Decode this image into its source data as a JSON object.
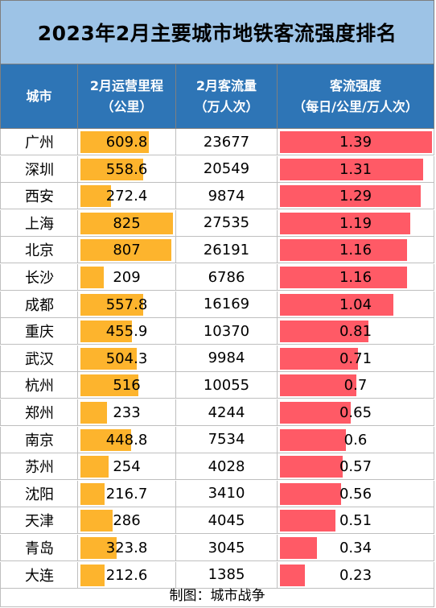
{
  "title": "2023年2月主要城市地铁客流强度排名",
  "headers": {
    "city": "城市",
    "mileage_line1": "2月运营里程",
    "mileage_line2": "（公里）",
    "flow_line1": "2月客流量",
    "flow_line2": "（万人次）",
    "intensity_line1": "客流强度",
    "intensity_line2": "（每日/公里/万人次）"
  },
  "colors": {
    "header_bg": "#2e75b6",
    "title_bg": "#9dc3e6",
    "mileage_bar": "#fdb42d",
    "intensity_bar": "#ff5a66"
  },
  "chart_data": {
    "type": "table",
    "columns": [
      "城市",
      "2月运营里程（公里）",
      "2月客流量（万人次）",
      "客流强度（每日/公里/万人次）"
    ],
    "rows": [
      {
        "city": "广州",
        "mileage": 609.8,
        "flow": 23677,
        "intensity": 1.39
      },
      {
        "city": "深圳",
        "mileage": 558.6,
        "flow": 20549,
        "intensity": 1.31
      },
      {
        "city": "西安",
        "mileage": 272.4,
        "flow": 9874,
        "intensity": 1.29
      },
      {
        "city": "上海",
        "mileage": 825,
        "flow": 27535,
        "intensity": 1.19
      },
      {
        "city": "北京",
        "mileage": 807,
        "flow": 26191,
        "intensity": 1.16
      },
      {
        "city": "长沙",
        "mileage": 209,
        "flow": 6786,
        "intensity": 1.16
      },
      {
        "city": "成都",
        "mileage": 557.8,
        "flow": 16169,
        "intensity": 1.04
      },
      {
        "city": "重庆",
        "mileage": 455.9,
        "flow": 10370,
        "intensity": 0.81
      },
      {
        "city": "武汉",
        "mileage": 504.3,
        "flow": 9984,
        "intensity": 0.71
      },
      {
        "city": "杭州",
        "mileage": 516,
        "flow": 10055,
        "intensity": 0.7
      },
      {
        "city": "郑州",
        "mileage": 233,
        "flow": 4244,
        "intensity": 0.65
      },
      {
        "city": "南京",
        "mileage": 448.8,
        "flow": 7534,
        "intensity": 0.6
      },
      {
        "city": "苏州",
        "mileage": 254,
        "flow": 4028,
        "intensity": 0.57
      },
      {
        "city": "沈阳",
        "mileage": 216.7,
        "flow": 3410,
        "intensity": 0.56
      },
      {
        "city": "天津",
        "mileage": 286,
        "flow": 4045,
        "intensity": 0.51
      },
      {
        "city": "青岛",
        "mileage": 323.8,
        "flow": 3045,
        "intensity": 0.34
      },
      {
        "city": "大连",
        "mileage": 212.6,
        "flow": 1385,
        "intensity": 0.23
      }
    ]
  },
  "footer": "制图：城市战争"
}
